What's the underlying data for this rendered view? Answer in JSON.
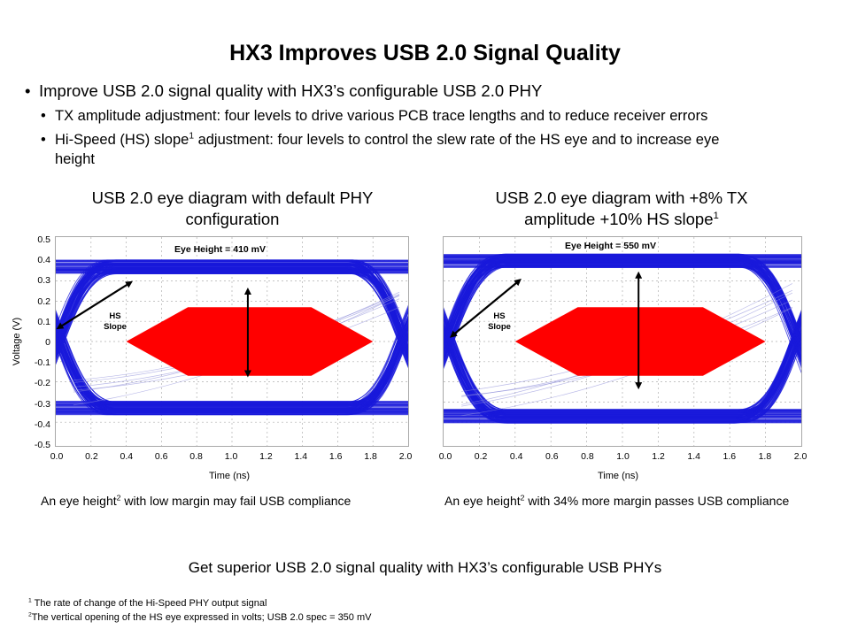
{
  "slide": {
    "title": "HX3 Improves USB 2.0 Signal Quality",
    "bullet_main": "Improve USB 2.0 signal quality with HX3’s configurable USB 2.0 PHY",
    "sub_bullet_1": "TX amplitude adjustment: four levels to drive various PCB trace lengths and to reduce receiver errors",
    "sub_bullet_2_pre": "Hi-Speed (HS) slope",
    "sub_bullet_2_sup": "1",
    "sub_bullet_2_post": " adjustment: four levels to control the slew rate of the HS eye and to increase eye",
    "sub_bullet_2_cont": "height",
    "summary": "Get superior USB 2.0 signal quality with HX3’s configurable USB PHYs",
    "footnote_1_num": "1",
    "footnote_1_text": " The rate of change of the Hi-Speed PHY output signal",
    "footnote_2_num": "2",
    "footnote_2_text": "The vertical opening of the HS eye expressed in volts; USB 2.0 spec = 350 mV"
  },
  "left_panel": {
    "title_line1": "USB 2.0 eye diagram with default PHY",
    "title_line2": "configuration",
    "eye_height_label": "Eye Height = 410 mV",
    "hs_label_1": "HS",
    "hs_label_2": "Slope",
    "caption_pre": "An eye height",
    "caption_sup": "2",
    "caption_post": " with low margin may fail USB compliance"
  },
  "right_panel": {
    "title_line1": "USB 2.0 eye diagram with +8% TX",
    "title_line2": "amplitude  +10% HS slope",
    "title_sup": "1",
    "eye_height_label": "Eye Height = 550 mV",
    "hs_label_1": "HS",
    "hs_label_2": "Slope",
    "caption_pre": "An eye height",
    "caption_sup": "2",
    "caption_post": " with 34% more margin passes USB compliance"
  },
  "colors": {
    "trace": "#1a1adb",
    "mask": "#ff0000",
    "grid": "#b0b0b0",
    "arrow": "#000000"
  },
  "chart_data": [
    {
      "type": "eye-diagram",
      "xlabel": "Time (ns)",
      "ylabel": "Voltage (V)",
      "x_ticks": [
        "0.0",
        "0.2",
        "0.4",
        "0.6",
        "0.8",
        "1.0",
        "1.2",
        "1.4",
        "1.6",
        "1.8",
        "2.0"
      ],
      "y_ticks": [
        "0.5",
        "0.4",
        "0.3",
        "0.2",
        "0.1",
        "0",
        "-0.1",
        "-0.2",
        "-0.3",
        "-0.4",
        "-0.5"
      ],
      "xlim": [
        0,
        2.0
      ],
      "ylim": [
        -0.5,
        0.5
      ],
      "grid": true,
      "high_level_v": 0.37,
      "low_level_v": -0.33,
      "eye_top_v": 0.25,
      "eye_bottom_v": -0.16,
      "eye_height_mv": 410,
      "mask_polygon": [
        [
          0.75,
          0.17
        ],
        [
          1.45,
          0.17
        ],
        [
          1.8,
          0
        ],
        [
          1.45,
          -0.17
        ],
        [
          0.75,
          -0.17
        ],
        [
          0.4,
          0
        ]
      ]
    },
    {
      "type": "eye-diagram",
      "xlabel": "Time (ns)",
      "ylabel": "",
      "x_ticks": [
        "0.0",
        "0.2",
        "0.4",
        "0.6",
        "0.8",
        "1.0",
        "1.2",
        "1.4",
        "1.6",
        "1.8",
        "2.0"
      ],
      "y_ticks": [],
      "xlim": [
        0,
        2.0
      ],
      "ylim": [
        -0.5,
        0.5
      ],
      "grid": true,
      "high_level_v": 0.4,
      "low_level_v": -0.37,
      "eye_top_v": 0.33,
      "eye_bottom_v": -0.22,
      "eye_height_mv": 550,
      "mask_polygon": [
        [
          0.75,
          0.17
        ],
        [
          1.45,
          0.17
        ],
        [
          1.8,
          0
        ],
        [
          1.45,
          -0.17
        ],
        [
          0.75,
          -0.17
        ],
        [
          0.4,
          0
        ]
      ]
    }
  ]
}
